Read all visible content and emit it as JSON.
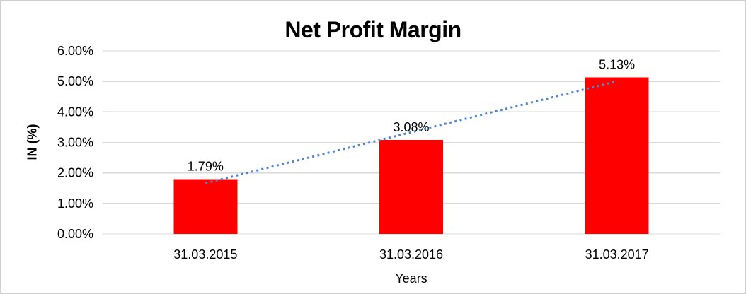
{
  "chart_data": {
    "type": "bar",
    "title": "Net Profit Margin",
    "categories": [
      "31.03.2015",
      "31.03.2016",
      "31.03.2017"
    ],
    "values": [
      1.79,
      3.08,
      5.13
    ],
    "data_labels": [
      "1.79%",
      "3.08%",
      "5.13%"
    ],
    "xlabel": "Years",
    "ylabel": "IN (%)",
    "ylim": [
      0,
      6
    ],
    "ytick_step": 1,
    "ytick_labels": [
      "0.00%",
      "1.00%",
      "2.00%",
      "3.00%",
      "4.00%",
      "5.00%",
      "6.00%"
    ],
    "grid": true,
    "legend_position": "none",
    "trendline": {
      "type": "linear",
      "style": "dotted"
    },
    "colors": {
      "bar": "#FF0000",
      "trendline": "#4E86C8",
      "gridline": "#D9D9D9",
      "text": "#000000",
      "background": "#FFFFFF"
    }
  }
}
